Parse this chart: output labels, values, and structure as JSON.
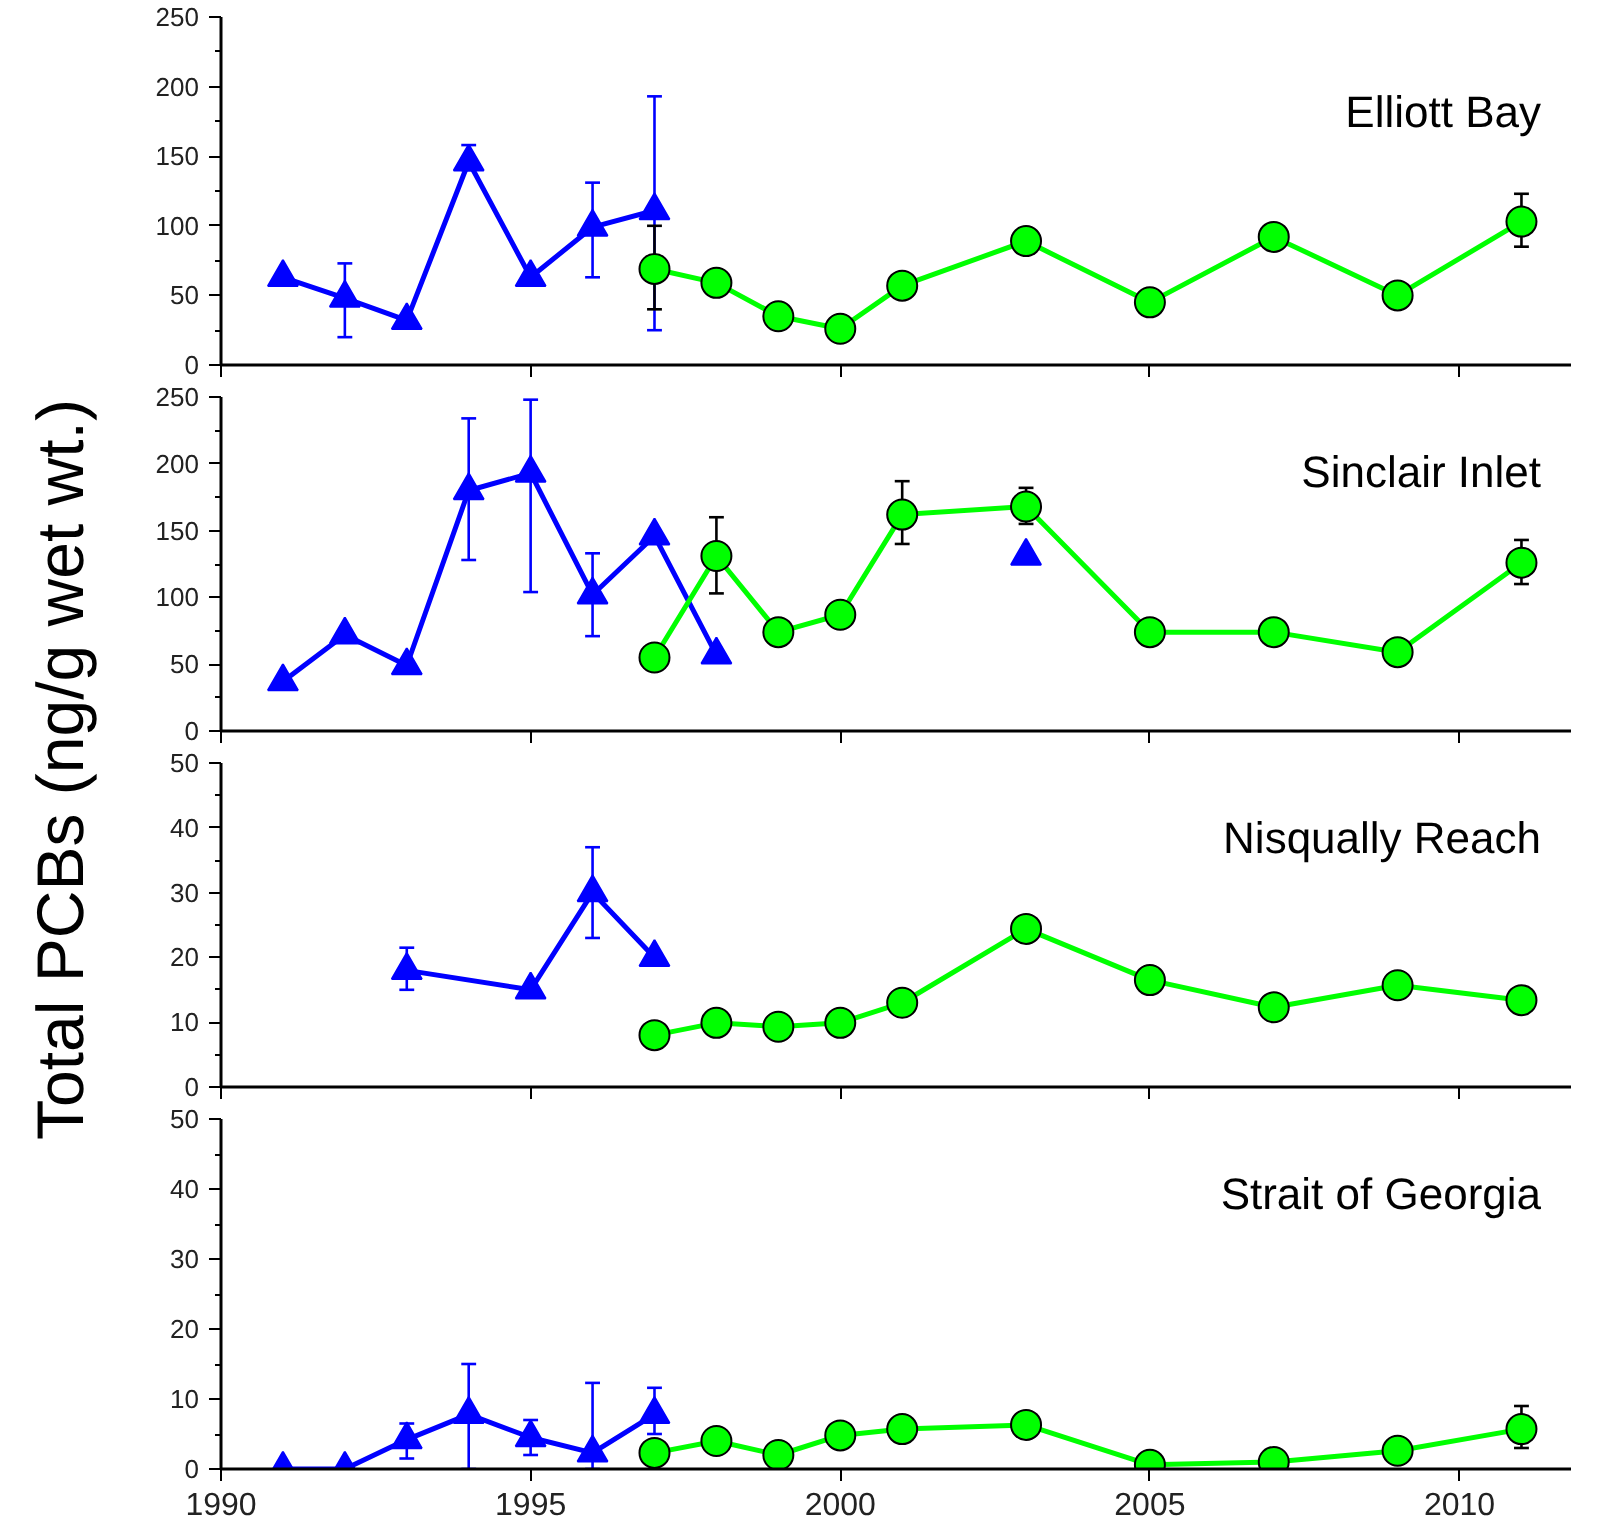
{
  "chart_data": [
    {
      "type": "line",
      "title": "Elliott Bay",
      "xlim": [
        1990,
        2011.8
      ],
      "xticks": [
        1990,
        1995,
        2000,
        2005,
        2010
      ],
      "ylim": [
        0,
        250
      ],
      "yticks": [
        0,
        50,
        100,
        150,
        200,
        250
      ],
      "tick_labels": "y",
      "grid": false,
      "series": [
        {
          "color": "#0000ff",
          "marker": "triangle",
          "x": [
            1991,
            1992,
            1993,
            1994,
            1995,
            1996,
            1997
          ],
          "values": [
            63,
            48,
            32,
            146,
            63,
            99,
            111
          ],
          "errors": [
            null,
            [
              20,
              73
            ],
            null,
            [
              140,
              158
            ],
            null,
            [
              63,
              131
            ],
            [
              25,
              193
            ]
          ]
        },
        {
          "color": "#00ff00",
          "marker": "circle",
          "x": [
            1997,
            1998,
            1999,
            2000,
            2001,
            2003,
            2005,
            2007,
            2009,
            2011
          ],
          "values": [
            69,
            59,
            35,
            26,
            57,
            89,
            45,
            92,
            50,
            103
          ],
          "errors": [
            [
              40,
              100
            ],
            null,
            null,
            null,
            null,
            null,
            null,
            null,
            null,
            [
              85,
              123
            ]
          ]
        }
      ]
    },
    {
      "type": "line",
      "title": "Sinclair Inlet",
      "ylabel": "Total PCBs (ng/g wet wt.)",
      "xlim": [
        1990,
        2011.8
      ],
      "xticks": [
        1990,
        1995,
        2000,
        2005,
        2010
      ],
      "ylim": [
        0,
        250
      ],
      "yticks": [
        0,
        50,
        100,
        150,
        200,
        250
      ],
      "tick_labels": "y",
      "grid": false,
      "series": [
        {
          "color": "#0000ff",
          "marker": "triangle",
          "x": [
            1991,
            1992,
            1993,
            1994,
            1995,
            1996,
            1997,
            1998,
            2000,
            2003
          ],
          "values": [
            37,
            72,
            49,
            180,
            193,
            102,
            146,
            57,
            null,
            131
          ],
          "errors": [
            null,
            null,
            null,
            [
              128,
              234
            ],
            [
              104,
              248
            ],
            [
              71,
              133
            ],
            null,
            null,
            null,
            null
          ]
        },
        {
          "color": "#00ff00",
          "marker": "circle",
          "x": [
            1997,
            1998,
            1999,
            2000,
            2001,
            2003,
            2005,
            2007,
            2009,
            2011
          ],
          "values": [
            55,
            131,
            74,
            87,
            162,
            168,
            74,
            74,
            59,
            126
          ],
          "errors": [
            null,
            [
              103,
              160
            ],
            null,
            null,
            [
              140,
              187
            ],
            [
              155,
              182
            ],
            null,
            null,
            null,
            [
              110,
              143
            ]
          ]
        }
      ]
    },
    {
      "type": "line",
      "title": "Nisqually Reach",
      "xlim": [
        1990,
        2011.8
      ],
      "xticks": [
        1990,
        1995,
        2000,
        2005,
        2010
      ],
      "ylim": [
        0,
        50
      ],
      "yticks": [
        0,
        10,
        20,
        30,
        40,
        50
      ],
      "tick_labels": "y",
      "grid": false,
      "series": [
        {
          "color": "#0000ff",
          "marker": "triangle",
          "x": [
            1993,
            1995,
            1996,
            1997
          ],
          "values": [
            18,
            15,
            30,
            20
          ],
          "errors": [
            [
              15,
              21.5
            ],
            null,
            [
              23,
              37
            ],
            null
          ]
        },
        {
          "color": "#00ff00",
          "marker": "circle",
          "x": [
            1997,
            1998,
            1999,
            2000,
            2001,
            2003,
            2005,
            2007,
            2009,
            2011
          ],
          "values": [
            8,
            9.9,
            9.3,
            9.9,
            13,
            24.4,
            16.5,
            12.3,
            15.7,
            13.4
          ]
        }
      ]
    },
    {
      "type": "line",
      "title": "Strait of Georgia",
      "xlim": [
        1990,
        2011.8
      ],
      "xticks": [
        1990,
        1995,
        2000,
        2005,
        2010
      ],
      "ylim": [
        0,
        50
      ],
      "yticks": [
        0,
        10,
        20,
        30,
        40,
        50
      ],
      "grid": false,
      "series": [
        {
          "color": "#0000ff",
          "marker": "triangle",
          "x": [
            1991,
            1992,
            1993,
            1994,
            1995,
            1996,
            1997
          ],
          "values": [
            0,
            0,
            4.2,
            7.8,
            4.5,
            2.3,
            7.8
          ],
          "errors": [
            null,
            null,
            [
              1.5,
              6.5
            ],
            [
              0,
              15
            ],
            [
              2,
              7
            ],
            [
              0,
              12.3
            ],
            [
              5,
              11.6
            ]
          ]
        },
        {
          "color": "#00ff00",
          "marker": "circle",
          "x": [
            1997,
            1998,
            1999,
            2000,
            2001,
            2003,
            2005,
            2007,
            2009,
            2011
          ],
          "values": [
            2.3,
            4,
            2,
            4.8,
            5.7,
            6.3,
            0.6,
            1,
            2.6,
            5.7
          ],
          "errors": [
            null,
            null,
            null,
            null,
            null,
            null,
            null,
            null,
            null,
            [
              3,
              9
            ]
          ]
        }
      ]
    }
  ]
}
